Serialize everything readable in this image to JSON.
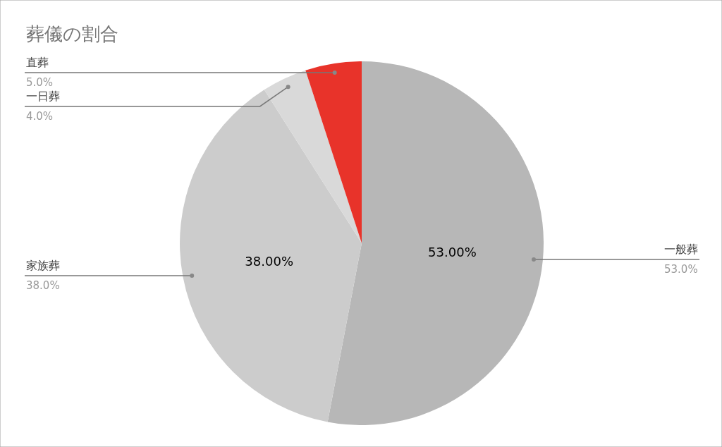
{
  "chart_data": {
    "type": "pie",
    "title": "葬儀の割合",
    "categories": [
      "一般葬",
      "家族葬",
      "一日葬",
      "直葬"
    ],
    "values": [
      53,
      38,
      4,
      5
    ],
    "colors": [
      "#b7b7b7",
      "#cccccc",
      "#d9d9d9",
      "#e8332a"
    ],
    "value_labels": [
      "53.00%",
      "38.00%",
      null,
      null
    ],
    "annotations": [
      "53.0%",
      "38.0%",
      "4.0%",
      "5.0%"
    ],
    "legend": false
  }
}
